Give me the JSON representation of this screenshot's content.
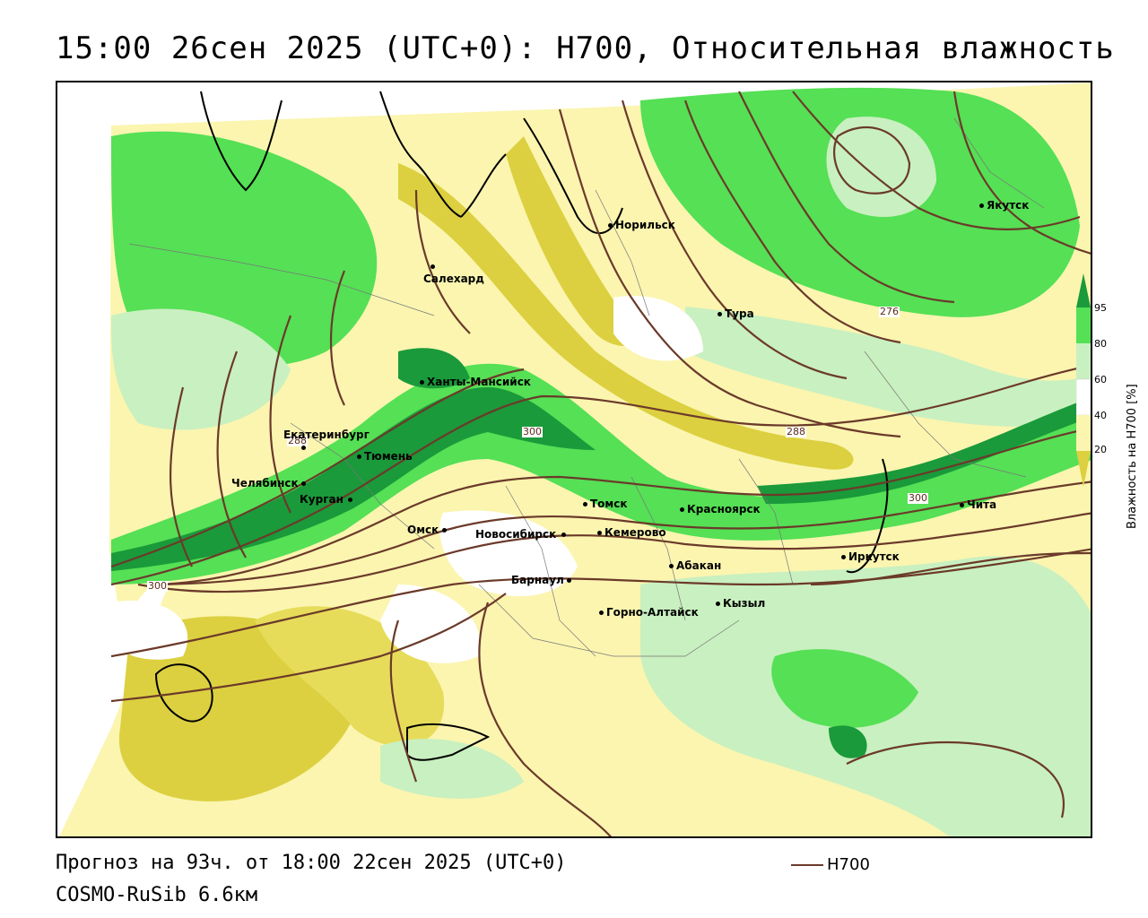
{
  "header": {
    "title": "15:00 26сен 2025 (UTC+0): H700, Относительная влажность"
  },
  "colors": {
    "contour": "#6b3a2a",
    "rh_20": "#dcd040",
    "rh_40": "#fbf5b0",
    "rh_60": "#c9f0c0",
    "rh_80": "#55e055",
    "rh_95": "#1a9a3a"
  },
  "contour_labels": [
    {
      "text": "276"
    },
    {
      "text": "288"
    },
    {
      "text": "300"
    },
    {
      "text": "300"
    },
    {
      "text": "300"
    },
    {
      "text": "288"
    }
  ],
  "cities": [
    {
      "name": "Норильск"
    },
    {
      "name": "Якутск"
    },
    {
      "name": "Салехард"
    },
    {
      "name": "Тура"
    },
    {
      "name": "Ханты-Мансийск"
    },
    {
      "name": "Екатеринбург"
    },
    {
      "name": "Тюмень"
    },
    {
      "name": "Челябинск"
    },
    {
      "name": "Курган"
    },
    {
      "name": "Томск"
    },
    {
      "name": "Красноярск"
    },
    {
      "name": "Чита"
    },
    {
      "name": "Омск"
    },
    {
      "name": "Новосибирск"
    },
    {
      "name": "Кемерово"
    },
    {
      "name": "Иркутск"
    },
    {
      "name": "Абакан"
    },
    {
      "name": "Барнаул"
    },
    {
      "name": "Кызыл"
    },
    {
      "name": "Горно-Алтайск"
    }
  ],
  "legend": {
    "ticks": [
      "95",
      "80",
      "60",
      "40",
      "20"
    ],
    "title": "Влажность на H700 [%]",
    "line_label": "H700"
  },
  "footer": {
    "forecast": "Прогноз на 93ч. от 18:00 22сен 2025 (UTC+0)",
    "model": "COSMO-RuSib 6.6км"
  }
}
